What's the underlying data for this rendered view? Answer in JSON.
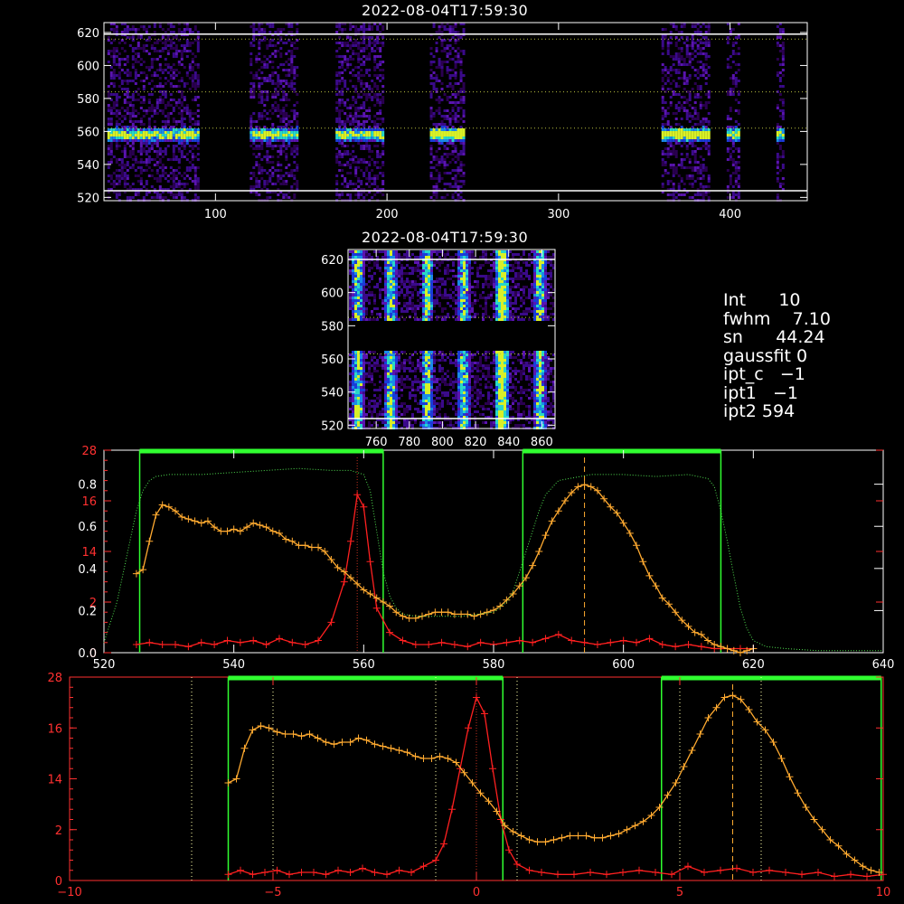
{
  "panel_top": {
    "title": "2022-08-04T17:59:30",
    "x_ticks": [
      100,
      200,
      300,
      400
    ],
    "y_ticks": [
      520,
      540,
      560,
      580,
      600,
      620
    ],
    "xlim": [
      35,
      445
    ],
    "ylim": [
      518,
      626
    ],
    "slit_columns": [
      [
        37,
        90
      ],
      [
        120,
        148
      ],
      [
        170,
        197
      ],
      [
        225,
        245
      ],
      [
        360,
        387
      ],
      [
        398,
        405
      ],
      [
        427,
        431
      ]
    ],
    "dotted_lines": [
      562,
      584,
      616
    ],
    "white_lines": [
      524,
      619
    ]
  },
  "panel_zoom": {
    "title": "2022-08-04T17:59:30",
    "x_ticks": [
      760,
      780,
      800,
      820,
      840,
      860
    ],
    "y_ticks": [
      520,
      540,
      560,
      580,
      600,
      620
    ],
    "xlim": [
      743,
      868
    ],
    "ylim": [
      518,
      626
    ],
    "strip_columns": [
      748,
      768,
      790,
      812,
      835,
      858
    ],
    "dotted_lines": [
      563,
      585
    ],
    "white_lines": [
      524,
      620
    ]
  },
  "params": [
    {
      "key": "Int",
      "value": "10"
    },
    {
      "key": "fwhm",
      "value": "7.10"
    },
    {
      "key": "sn",
      "value": "44.24"
    },
    {
      "key": "gaussfit",
      "value": "0"
    },
    {
      "key": "ipt_c",
      "value": "−1"
    },
    {
      "key": "ipt1",
      "value": "−1"
    },
    {
      "key": "ipt2",
      "value": "594"
    }
  ],
  "chart_data": [
    {
      "type": "line",
      "x_ticks": [
        520,
        540,
        560,
        580,
        600,
        620,
        640
      ],
      "xlim": [
        520,
        640
      ],
      "ylim": [
        0,
        1
      ],
      "y_ticks_white": [
        "0.0",
        "0.2",
        "0.4",
        "0.6",
        "0.8"
      ],
      "y_ticks_red": [
        "0",
        "2",
        "14",
        "16",
        "28"
      ],
      "green_boxes": [
        [
          525.5,
          563
        ],
        [
          584.5,
          615
        ]
      ],
      "red_peak_x": 559,
      "orange_peak_x": 594,
      "series": [
        {
          "color": "#ff2020",
          "x": [
            525,
            527,
            529,
            531,
            533,
            535,
            537,
            539,
            541,
            543,
            545,
            547,
            549,
            551,
            553,
            555,
            557,
            558,
            559,
            560,
            561,
            562,
            564,
            566,
            568,
            570,
            572,
            574,
            576,
            578,
            580,
            582,
            584,
            586,
            588,
            590,
            592,
            594,
            596,
            598,
            600,
            602,
            604,
            606,
            608,
            610,
            612,
            614,
            616,
            618,
            620
          ],
          "values": [
            0.04,
            0.05,
            0.04,
            0.04,
            0.03,
            0.05,
            0.04,
            0.06,
            0.05,
            0.06,
            0.04,
            0.07,
            0.05,
            0.04,
            0.06,
            0.15,
            0.35,
            0.55,
            0.78,
            0.72,
            0.45,
            0.22,
            0.1,
            0.06,
            0.04,
            0.04,
            0.05,
            0.04,
            0.03,
            0.05,
            0.04,
            0.05,
            0.06,
            0.05,
            0.07,
            0.09,
            0.06,
            0.05,
            0.04,
            0.05,
            0.06,
            0.05,
            0.07,
            0.04,
            0.03,
            0.04,
            0.03,
            0.02,
            0.02,
            0.02,
            0.02
          ]
        },
        {
          "color": "#ffaa30",
          "x": [
            525,
            526,
            527,
            528,
            529,
            530,
            531,
            532,
            533,
            534,
            535,
            536,
            537,
            538,
            539,
            540,
            541,
            542,
            543,
            544,
            545,
            546,
            547,
            548,
            549,
            550,
            551,
            552,
            553,
            554,
            555,
            556,
            557,
            558,
            559,
            560,
            561,
            562,
            563,
            564,
            565,
            566,
            567,
            568,
            569,
            570,
            571,
            572,
            573,
            574,
            575,
            576,
            577,
            578,
            579,
            580,
            581,
            582,
            583,
            584,
            585,
            586,
            587,
            588,
            589,
            590,
            591,
            592,
            593,
            594,
            595,
            596,
            597,
            598,
            599,
            600,
            601,
            602,
            603,
            604,
            605,
            606,
            607,
            608,
            609,
            610,
            611,
            612,
            613,
            614,
            615,
            616,
            617,
            618,
            619,
            620
          ],
          "values": [
            0.39,
            0.41,
            0.55,
            0.68,
            0.73,
            0.72,
            0.7,
            0.67,
            0.66,
            0.65,
            0.64,
            0.65,
            0.62,
            0.6,
            0.6,
            0.61,
            0.6,
            0.62,
            0.64,
            0.63,
            0.62,
            0.6,
            0.59,
            0.56,
            0.55,
            0.53,
            0.53,
            0.52,
            0.52,
            0.5,
            0.46,
            0.42,
            0.4,
            0.37,
            0.34,
            0.31,
            0.29,
            0.27,
            0.25,
            0.23,
            0.2,
            0.18,
            0.17,
            0.17,
            0.18,
            0.19,
            0.2,
            0.2,
            0.2,
            0.19,
            0.19,
            0.19,
            0.18,
            0.19,
            0.2,
            0.21,
            0.23,
            0.26,
            0.29,
            0.33,
            0.37,
            0.43,
            0.5,
            0.58,
            0.65,
            0.7,
            0.75,
            0.79,
            0.82,
            0.83,
            0.82,
            0.8,
            0.76,
            0.72,
            0.69,
            0.64,
            0.59,
            0.53,
            0.45,
            0.38,
            0.33,
            0.27,
            0.24,
            0.2,
            0.16,
            0.13,
            0.1,
            0.09,
            0.06,
            0.04,
            0.03,
            0.02,
            0.01,
            0.0,
            0.01,
            0.02
          ]
        },
        {
          "color": "#2a9a2a",
          "x": [
            520,
            521,
            522,
            523,
            524,
            525,
            526,
            527,
            528,
            530,
            535,
            540,
            545,
            550,
            555,
            558,
            560,
            561,
            562,
            563,
            564,
            565,
            566,
            568,
            570,
            575,
            580,
            582,
            583,
            584,
            585,
            586,
            587,
            588,
            590,
            595,
            600,
            605,
            610,
            613,
            614,
            615,
            616,
            617,
            618,
            619,
            620,
            622,
            625,
            630,
            635,
            640
          ],
          "values": [
            0.05,
            0.15,
            0.25,
            0.4,
            0.55,
            0.7,
            0.8,
            0.85,
            0.87,
            0.88,
            0.88,
            0.89,
            0.9,
            0.91,
            0.9,
            0.9,
            0.88,
            0.8,
            0.6,
            0.4,
            0.28,
            0.22,
            0.19,
            0.18,
            0.18,
            0.18,
            0.2,
            0.25,
            0.3,
            0.4,
            0.5,
            0.6,
            0.7,
            0.78,
            0.85,
            0.88,
            0.88,
            0.87,
            0.88,
            0.86,
            0.82,
            0.7,
            0.55,
            0.38,
            0.22,
            0.12,
            0.06,
            0.03,
            0.02,
            0.01,
            0.01,
            0.01
          ]
        }
      ]
    },
    {
      "type": "line",
      "x_ticks": [
        -10,
        -5,
        0,
        5,
        10
      ],
      "xlim": [
        -10,
        10
      ],
      "ylim": [
        0,
        1
      ],
      "y_ticks_red": [
        "0",
        "2",
        "14",
        "16",
        "28"
      ],
      "green_boxes": [
        [
          -6.1,
          0.65
        ],
        [
          4.55,
          9.95
        ]
      ],
      "dotted_verticals": [
        -7,
        -5,
        -1,
        1,
        5,
        7
      ],
      "red_peak_x": 0,
      "orange_peak_x": 6.3,
      "series": [
        {
          "color": "#ff2020",
          "x": [
            -6.1,
            -5.8,
            -5.5,
            -5.2,
            -4.9,
            -4.6,
            -4.3,
            -4.0,
            -3.7,
            -3.4,
            -3.1,
            -2.8,
            -2.5,
            -2.2,
            -1.9,
            -1.6,
            -1.3,
            -1.0,
            -0.8,
            -0.6,
            -0.4,
            -0.2,
            0,
            0.2,
            0.4,
            0.6,
            0.8,
            1.0,
            1.3,
            1.6,
            2.0,
            2.4,
            2.8,
            3.2,
            3.6,
            4.0,
            4.4,
            4.8,
            5.2,
            5.6,
            6.0,
            6.4,
            6.8,
            7.2,
            7.6,
            8.0,
            8.4,
            8.8,
            9.2,
            9.6,
            10.0
          ],
          "values": [
            0.03,
            0.05,
            0.03,
            0.04,
            0.05,
            0.03,
            0.04,
            0.04,
            0.03,
            0.05,
            0.04,
            0.06,
            0.04,
            0.03,
            0.05,
            0.04,
            0.07,
            0.1,
            0.18,
            0.35,
            0.55,
            0.75,
            0.9,
            0.82,
            0.55,
            0.3,
            0.15,
            0.08,
            0.05,
            0.04,
            0.03,
            0.03,
            0.04,
            0.03,
            0.04,
            0.05,
            0.04,
            0.03,
            0.07,
            0.04,
            0.05,
            0.06,
            0.04,
            0.05,
            0.04,
            0.03,
            0.04,
            0.02,
            0.03,
            0.02,
            0.03
          ]
        },
        {
          "color": "#ffaa30",
          "x": [
            -6.1,
            -5.9,
            -5.7,
            -5.5,
            -5.3,
            -5.1,
            -4.9,
            -4.7,
            -4.5,
            -4.3,
            -4.1,
            -3.9,
            -3.7,
            -3.5,
            -3.3,
            -3.1,
            -2.9,
            -2.7,
            -2.5,
            -2.3,
            -2.1,
            -1.9,
            -1.7,
            -1.5,
            -1.3,
            -1.1,
            -0.9,
            -0.7,
            -0.5,
            -0.3,
            -0.1,
            0.1,
            0.3,
            0.5,
            0.7,
            0.9,
            1.1,
            1.3,
            1.5,
            1.7,
            1.9,
            2.1,
            2.3,
            2.5,
            2.7,
            2.9,
            3.1,
            3.3,
            3.5,
            3.7,
            3.9,
            4.1,
            4.3,
            4.5,
            4.7,
            4.9,
            5.1,
            5.3,
            5.5,
            5.7,
            5.9,
            6.1,
            6.3,
            6.5,
            6.7,
            6.9,
            7.1,
            7.3,
            7.5,
            7.7,
            7.9,
            8.1,
            8.3,
            8.5,
            8.7,
            8.9,
            9.1,
            9.3,
            9.5,
            9.7,
            9.9
          ],
          "values": [
            0.48,
            0.5,
            0.65,
            0.74,
            0.76,
            0.75,
            0.73,
            0.72,
            0.72,
            0.71,
            0.72,
            0.7,
            0.68,
            0.67,
            0.68,
            0.68,
            0.7,
            0.69,
            0.67,
            0.66,
            0.65,
            0.64,
            0.63,
            0.61,
            0.6,
            0.6,
            0.61,
            0.6,
            0.58,
            0.53,
            0.48,
            0.43,
            0.39,
            0.34,
            0.27,
            0.24,
            0.22,
            0.2,
            0.19,
            0.19,
            0.2,
            0.21,
            0.22,
            0.22,
            0.22,
            0.21,
            0.21,
            0.22,
            0.23,
            0.25,
            0.27,
            0.29,
            0.32,
            0.36,
            0.42,
            0.48,
            0.56,
            0.64,
            0.72,
            0.8,
            0.85,
            0.9,
            0.91,
            0.89,
            0.84,
            0.78,
            0.74,
            0.68,
            0.6,
            0.51,
            0.43,
            0.36,
            0.3,
            0.25,
            0.2,
            0.17,
            0.13,
            0.1,
            0.07,
            0.05,
            0.04
          ]
        }
      ]
    }
  ]
}
